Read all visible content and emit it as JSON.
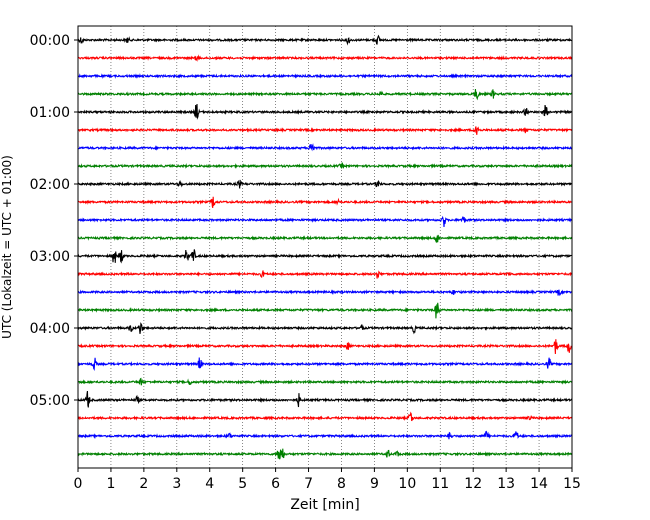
{
  "chart_data": {
    "type": "line",
    "xlabel": "Zeit  [min]",
    "ylabel": "UTC (Lokalzeit = UTC + 01:00)",
    "xlim": [
      0,
      15
    ],
    "x_ticks": [
      "0",
      "1",
      "2",
      "3",
      "4",
      "5",
      "6",
      "7",
      "8",
      "9",
      "10",
      "11",
      "12",
      "13",
      "14",
      "15"
    ],
    "y_tick_labels": [
      "00:00",
      "01:00",
      "02:00",
      "03:00",
      "04:00",
      "05:00"
    ],
    "grid": "vertical dotted lines at each minute",
    "trace_colors": [
      "#000000",
      "#ff0000",
      "#0000ff",
      "#008000"
    ],
    "trace_count": 24,
    "minutes_per_trace": 15,
    "events": [
      [
        [
          0.1,
          0.5
        ],
        [
          1.5,
          0.5
        ],
        [
          8.2,
          0.6
        ],
        [
          9.1,
          0.7
        ]
      ],
      [
        [
          3.6,
          0.3
        ]
      ],
      [],
      [
        [
          9.2,
          0.3
        ],
        [
          12.1,
          0.9
        ],
        [
          12.6,
          0.6
        ]
      ],
      [
        [
          3.6,
          1.3
        ],
        [
          13.6,
          0.7
        ],
        [
          14.2,
          1.0
        ]
      ],
      [
        [
          12.1,
          1.4
        ],
        [
          13.6,
          0.4
        ]
      ],
      [
        [
          7.1,
          1.6
        ]
      ],
      [
        [
          8.0,
          0.4
        ]
      ],
      [
        [
          3.1,
          0.4
        ],
        [
          4.9,
          0.6
        ],
        [
          9.1,
          0.6
        ]
      ],
      [
        [
          4.1,
          0.9
        ],
        [
          7.9,
          0.3
        ]
      ],
      [
        [
          11.1,
          1.1
        ],
        [
          11.7,
          0.5
        ]
      ],
      [
        [
          10.9,
          0.8
        ]
      ],
      [
        [
          1.1,
          1.3
        ],
        [
          1.3,
          1.2
        ],
        [
          3.3,
          1.0
        ],
        [
          3.5,
          1.3
        ]
      ],
      [
        [
          5.6,
          0.5
        ],
        [
          9.1,
          0.6
        ],
        [
          13.1,
          0.3
        ]
      ],
      [
        [
          11.4,
          0.3
        ],
        [
          14.6,
          0.5
        ]
      ],
      [
        [
          10.9,
          1.6
        ]
      ],
      [
        [
          1.6,
          0.6
        ],
        [
          1.9,
          1.0
        ],
        [
          8.6,
          0.5
        ],
        [
          10.2,
          0.6
        ]
      ],
      [
        [
          8.2,
          0.6
        ],
        [
          14.5,
          1.2
        ],
        [
          14.9,
          1.2
        ]
      ],
      [
        [
          0.5,
          0.9
        ],
        [
          3.7,
          1.0
        ],
        [
          14.3,
          0.9
        ]
      ],
      [
        [
          1.9,
          0.5
        ],
        [
          3.4,
          0.4
        ]
      ],
      [
        [
          0.3,
          1.3
        ],
        [
          1.8,
          0.5
        ],
        [
          6.7,
          0.9
        ]
      ],
      [
        [
          10.1,
          1.0
        ],
        [
          13.7,
          0.4
        ]
      ],
      [
        [
          4.6,
          0.4
        ],
        [
          11.3,
          0.6
        ],
        [
          12.4,
          0.6
        ],
        [
          13.3,
          0.9
        ]
      ],
      [
        [
          6.1,
          1.3
        ],
        [
          6.2,
          1.0
        ],
        [
          9.4,
          0.7
        ],
        [
          9.7,
          0.4
        ]
      ]
    ]
  }
}
